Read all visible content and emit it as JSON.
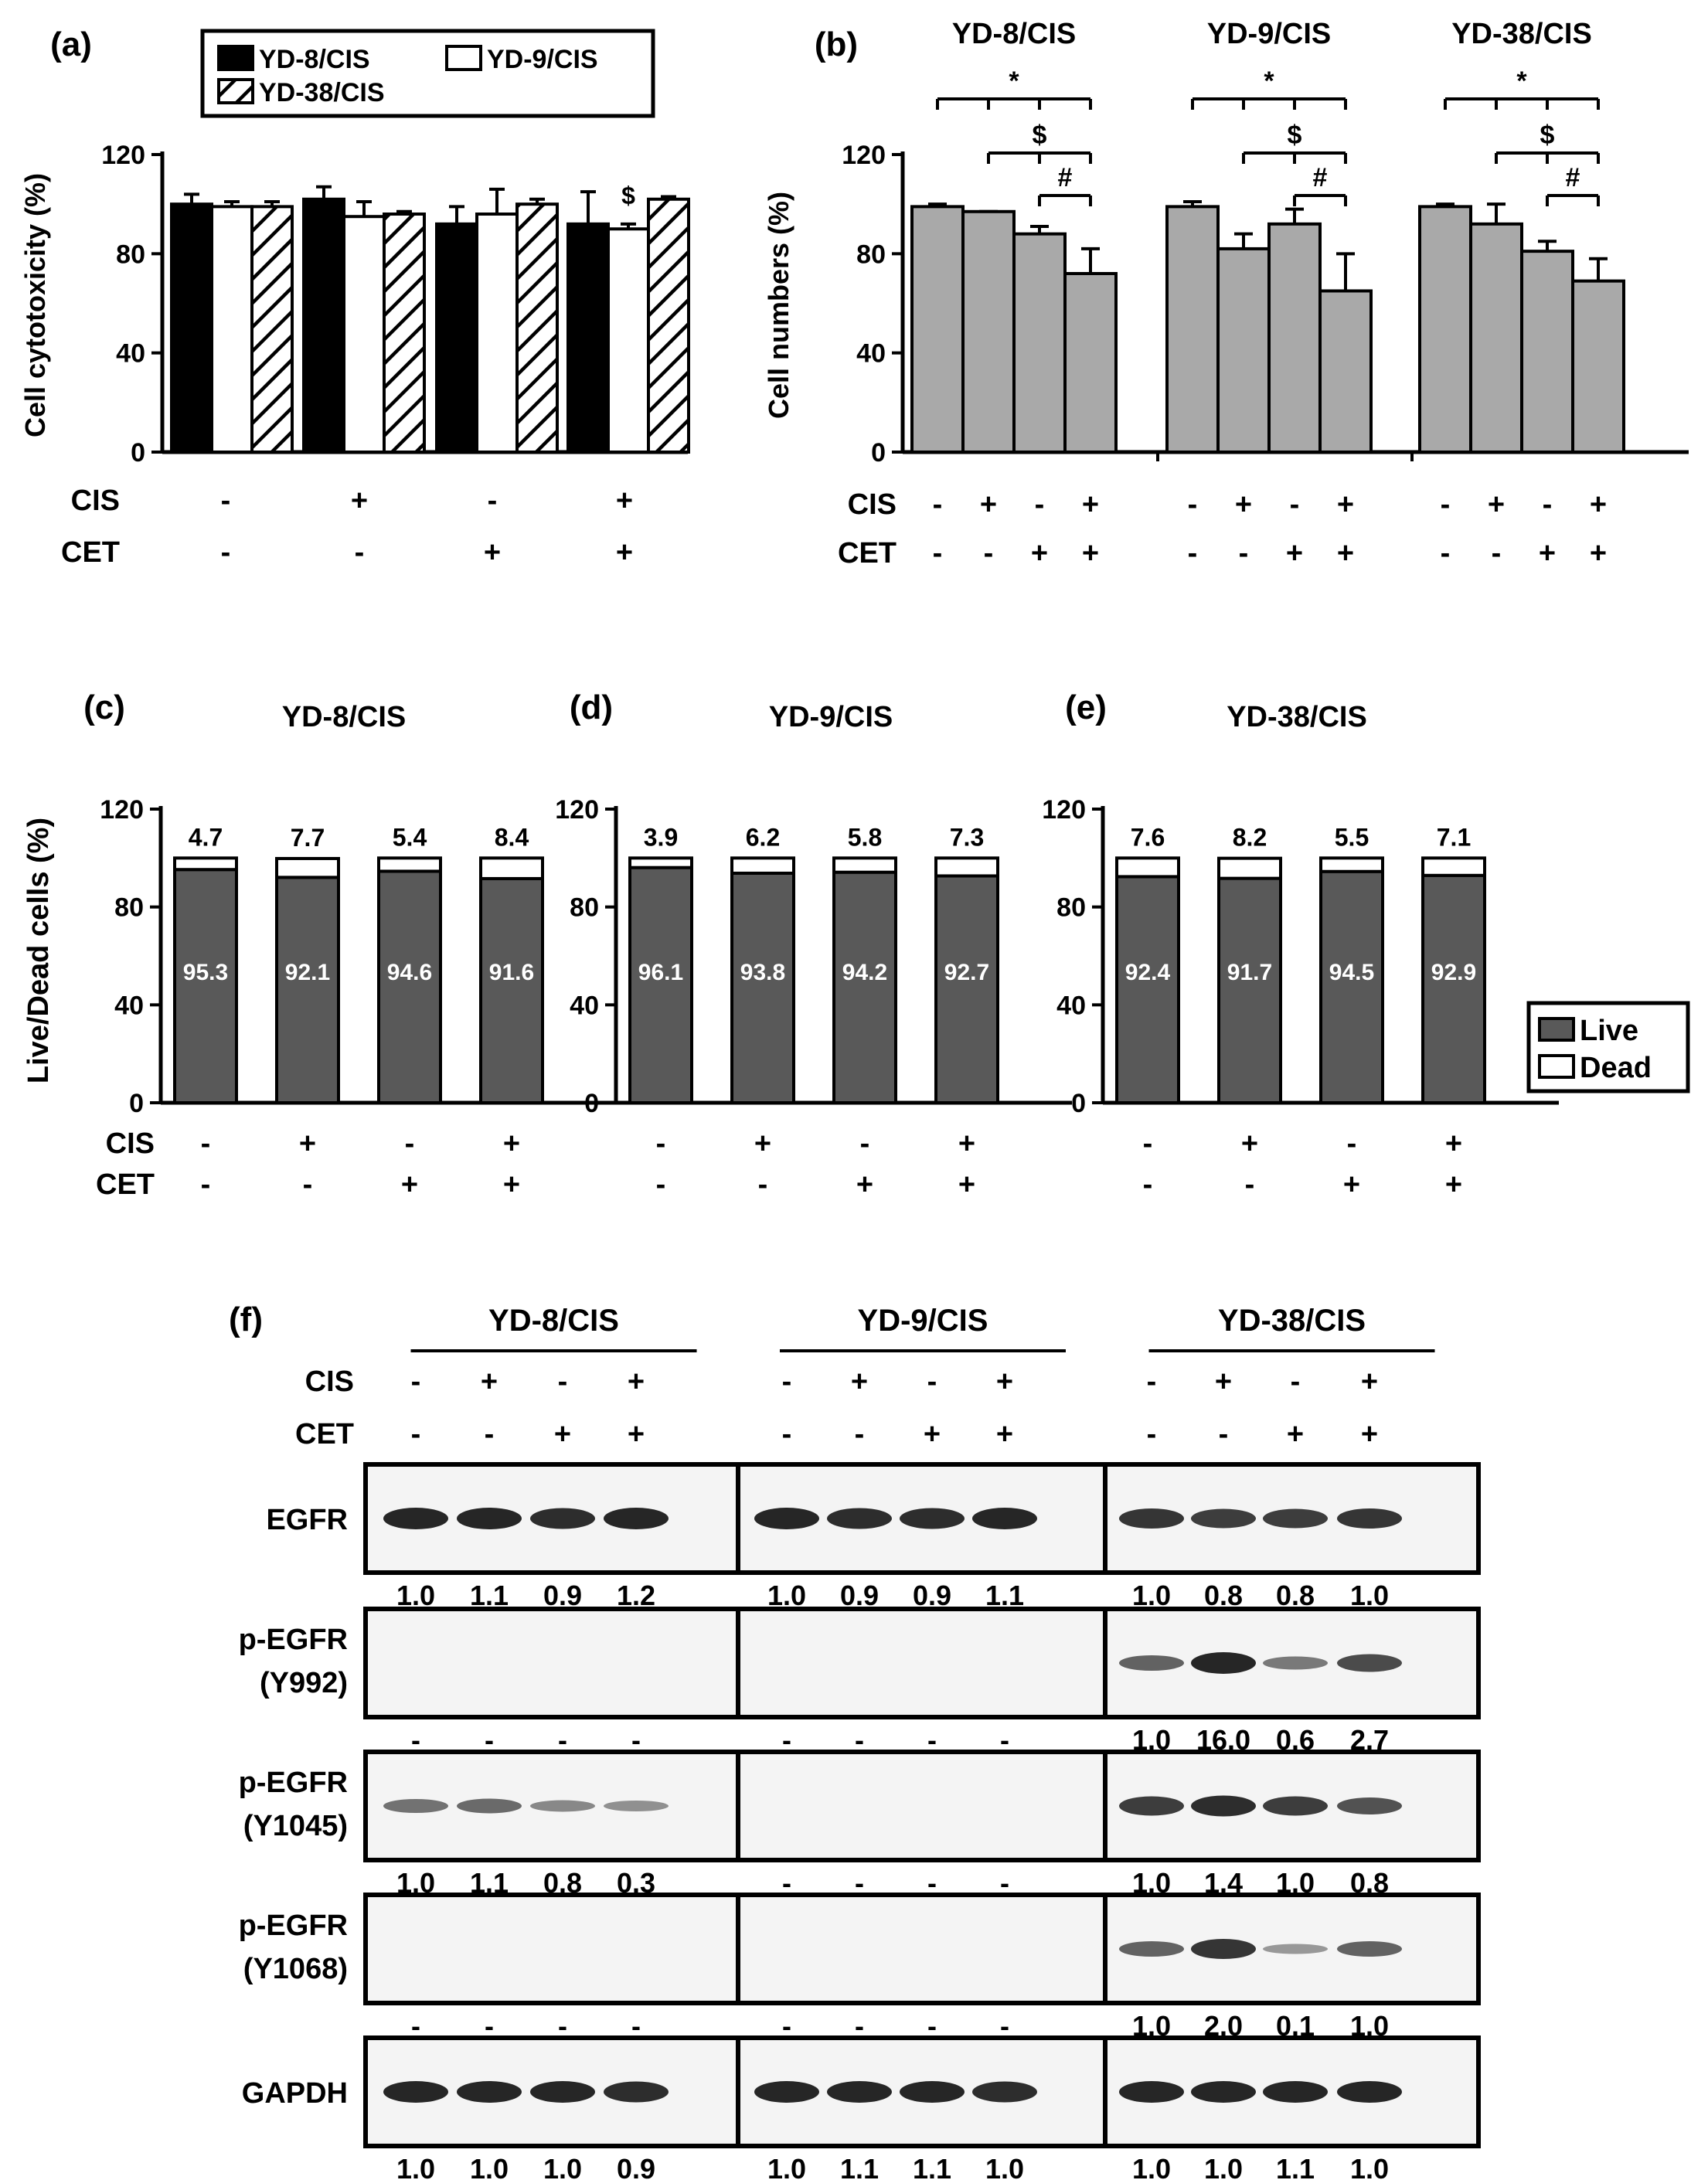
{
  "colors": {
    "axis": "#000000",
    "gray_bar": "#a9a9a9",
    "live": "#595959",
    "dead": "#ffffff",
    "blot_bg": "#f4f4f4",
    "band": "#1a1a1a"
  },
  "panel_a": {
    "label": "(a)",
    "row_labels": [
      "CIS",
      "CET"
    ],
    "cis": [
      "-",
      "+",
      "-",
      "+"
    ],
    "cet": [
      "-",
      "-",
      "+",
      "+"
    ],
    "markers": [
      {
        "group": 3,
        "series": 1,
        "text": "$"
      }
    ]
  },
  "panel_b": {
    "label": "(b)",
    "row_labels": [
      "CIS",
      "CET"
    ],
    "cis": [
      "-",
      "+",
      "-",
      "+"
    ],
    "cet": [
      "-",
      "-",
      "+",
      "+"
    ],
    "sig_symbols": [
      "*",
      "$",
      "#"
    ]
  },
  "panel_cde": {
    "labels": [
      "(c)",
      "(d)",
      "(e)"
    ],
    "row_labels": [
      "CIS",
      "CET"
    ],
    "cis": [
      "-",
      "+",
      "-",
      "+"
    ],
    "cet": [
      "-",
      "-",
      "+",
      "+"
    ],
    "legend": [
      "Live",
      "Dead"
    ]
  },
  "panel_f": {
    "label": "(f)",
    "groups": [
      "YD-8/CIS",
      "YD-9/CIS",
      "YD-38/CIS"
    ],
    "row_labels": [
      "CIS",
      "CET"
    ],
    "cis": [
      "-",
      "+",
      "-",
      "+"
    ],
    "cet": [
      "-",
      "-",
      "+",
      "+"
    ],
    "rows": [
      {
        "label1": "EGFR",
        "label2": "",
        "values": [
          [
            "1.0",
            "1.1",
            "0.9",
            "1.2"
          ],
          [
            "1.0",
            "0.9",
            "0.9",
            "1.1"
          ],
          [
            "1.0",
            "0.8",
            "0.8",
            "1.0"
          ]
        ],
        "intensity": [
          [
            1.0,
            1.0,
            0.95,
            1.0
          ],
          [
            1.0,
            0.95,
            0.95,
            1.0
          ],
          [
            0.9,
            0.85,
            0.85,
            0.9
          ]
        ]
      },
      {
        "label1": "p-EGFR",
        "label2": "(Y992)",
        "values": [
          [
            "-",
            "-",
            "-",
            "-"
          ],
          [
            "-",
            "-",
            "-",
            "-"
          ],
          [
            "1.0",
            "16.0",
            "0.6",
            "2.7"
          ]
        ],
        "intensity": [
          [
            0,
            0,
            0,
            0
          ],
          [
            0,
            0,
            0,
            0
          ],
          [
            0.6,
            1.0,
            0.45,
            0.75
          ]
        ]
      },
      {
        "label1": "p-EGFR",
        "label2": "(Y1045)",
        "values": [
          [
            "1.0",
            "1.1",
            "0.8",
            "0.3"
          ],
          [
            "-",
            "-",
            "-",
            "-"
          ],
          [
            "1.0",
            "1.4",
            "1.0",
            "0.8"
          ]
        ],
        "intensity": [
          [
            0.5,
            0.55,
            0.35,
            0.3
          ],
          [
            0,
            0,
            0,
            0
          ],
          [
            0.85,
            0.95,
            0.85,
            0.7
          ]
        ]
      },
      {
        "label1": "p-EGFR",
        "label2": "(Y1068)",
        "values": [
          [
            "-",
            "-",
            "-",
            "-"
          ],
          [
            "-",
            "-",
            "-",
            "-"
          ],
          [
            "1.0",
            "2.0",
            "0.1",
            "1.0"
          ]
        ],
        "intensity": [
          [
            0,
            0,
            0,
            0
          ],
          [
            0,
            0,
            0,
            0
          ],
          [
            0.6,
            0.9,
            0.25,
            0.6
          ]
        ]
      },
      {
        "label1": "GAPDH",
        "label2": "",
        "values": [
          [
            "1.0",
            "1.0",
            "1.0",
            "0.9"
          ],
          [
            "1.0",
            "1.1",
            "1.1",
            "1.0"
          ],
          [
            "1.0",
            "1.0",
            "1.1",
            "1.0"
          ]
        ],
        "intensity": [
          [
            1.0,
            1.0,
            1.0,
            0.95
          ],
          [
            1.0,
            1.0,
            1.0,
            0.95
          ],
          [
            1.0,
            1.0,
            1.0,
            1.0
          ]
        ]
      }
    ]
  },
  "chart_data": [
    {
      "id": "a",
      "type": "bar",
      "ylabel": "Cell cytotoxicity (%)",
      "ylim": [
        0,
        120
      ],
      "yticks": [
        "0",
        "40",
        "80",
        "120"
      ],
      "groups": 4,
      "series": [
        {
          "name": "YD-8/CIS",
          "values": [
            100,
            102,
            92,
            92
          ],
          "errors": [
            4,
            5,
            7,
            13
          ]
        },
        {
          "name": "YD-9/CIS",
          "values": [
            99,
            95,
            96,
            90
          ],
          "errors": [
            2,
            6,
            10,
            2
          ]
        },
        {
          "name": "YD-38/CIS",
          "values": [
            99,
            96,
            100,
            102
          ],
          "errors": [
            2,
            1,
            2,
            1
          ]
        }
      ]
    },
    {
      "id": "b",
      "type": "bar",
      "ylabel": "Cell numbers (%)",
      "ylim": [
        0,
        120
      ],
      "yticks": [
        "0",
        "40",
        "80",
        "120"
      ],
      "groups": [
        {
          "name": "YD-8/CIS",
          "values": [
            99,
            97,
            88,
            72
          ],
          "errors": [
            1,
            0,
            3,
            10
          ]
        },
        {
          "name": "YD-9/CIS",
          "values": [
            99,
            82,
            92,
            65
          ],
          "errors": [
            2,
            6,
            6,
            15
          ]
        },
        {
          "name": "YD-38/CIS",
          "values": [
            99,
            92,
            81,
            69
          ],
          "errors": [
            1,
            8,
            4,
            9
          ]
        }
      ]
    },
    {
      "id": "c",
      "type": "stacked-bar",
      "title": "YD-8/CIS",
      "ylabel": "Live/Dead cells (%)",
      "ylim": [
        0,
        120
      ],
      "yticks": [
        "0",
        "40",
        "80",
        "120"
      ],
      "live": [
        "95.3",
        "92.1",
        "94.6",
        "91.6"
      ],
      "dead": [
        "4.7",
        "7.7",
        "5.4",
        "8.4"
      ]
    },
    {
      "id": "d",
      "type": "stacked-bar",
      "title": "YD-9/CIS",
      "ylim": [
        0,
        120
      ],
      "yticks": [
        "0",
        "40",
        "80",
        "120"
      ],
      "live": [
        "96.1",
        "93.8",
        "94.2",
        "92.7"
      ],
      "dead": [
        "3.9",
        "6.2",
        "5.8",
        "7.3"
      ]
    },
    {
      "id": "e",
      "type": "stacked-bar",
      "title": "YD-38/CIS",
      "ylim": [
        0,
        120
      ],
      "yticks": [
        "0",
        "40",
        "80",
        "120"
      ],
      "live": [
        "92.4",
        "91.7",
        "94.5",
        "92.9"
      ],
      "dead": [
        "7.6",
        "8.2",
        "5.5",
        "7.1"
      ]
    }
  ]
}
